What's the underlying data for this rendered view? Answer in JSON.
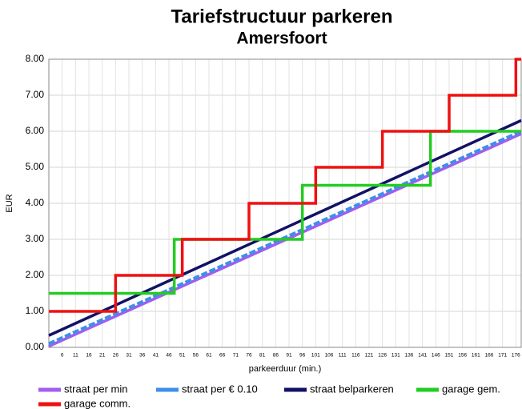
{
  "chart_data": {
    "type": "line",
    "title": "Tariefstructuur parkeren",
    "subtitle": "Amersfoort",
    "y_label": "EUR",
    "x_label": "parkeerduur (min.)",
    "xlim": [
      1,
      178
    ],
    "xticks": [
      6,
      11,
      16,
      21,
      26,
      31,
      36,
      41,
      46,
      51,
      56,
      61,
      66,
      71,
      76,
      81,
      86,
      91,
      96,
      101,
      106,
      111,
      116,
      121,
      126,
      131,
      136,
      141,
      146,
      151,
      156,
      161,
      166,
      171,
      176
    ],
    "ylim": [
      0,
      8
    ],
    "yticks": [
      {
        "value": 0,
        "label": "0.00"
      },
      {
        "value": 1,
        "label": "1.00"
      },
      {
        "value": 2,
        "label": "2.00"
      },
      {
        "value": 3,
        "label": "3.00"
      },
      {
        "value": 4,
        "label": "4.00"
      },
      {
        "value": 5,
        "label": "5.00"
      },
      {
        "value": 6,
        "label": "6.00"
      },
      {
        "value": 7,
        "label": "7.00"
      },
      {
        "value": 8,
        "label": "8.00"
      }
    ],
    "grid": true,
    "series": [
      {
        "name": "straat per min",
        "color": "#a35cf0",
        "x": [
          1,
          178
        ],
        "values": [
          0.03,
          5.93
        ]
      },
      {
        "name": "straat per € 0.10",
        "color": "#3d8fe8",
        "dashed": true,
        "x": [
          1,
          178
        ],
        "values": [
          0.1,
          6.0
        ]
      },
      {
        "name": "straat belparkeren",
        "color": "#111166",
        "x": [
          1,
          178
        ],
        "values": [
          0.33,
          6.3
        ]
      },
      {
        "name": "garage gem.",
        "color": "#22cc22",
        "x": [
          1,
          48,
          48,
          96,
          96,
          144,
          144,
          178
        ],
        "values": [
          1.5,
          1.5,
          3.0,
          3.0,
          4.5,
          4.5,
          6.0,
          6.0
        ]
      },
      {
        "name": "garage comm.",
        "color": "#ee1111",
        "x": [
          1,
          26,
          26,
          51,
          51,
          76,
          76,
          101,
          101,
          126,
          126,
          151,
          151,
          176,
          176,
          178
        ],
        "values": [
          1,
          1,
          2,
          2,
          3,
          3,
          4,
          4,
          5,
          5,
          6,
          6,
          7,
          7,
          8,
          8
        ]
      }
    ]
  }
}
